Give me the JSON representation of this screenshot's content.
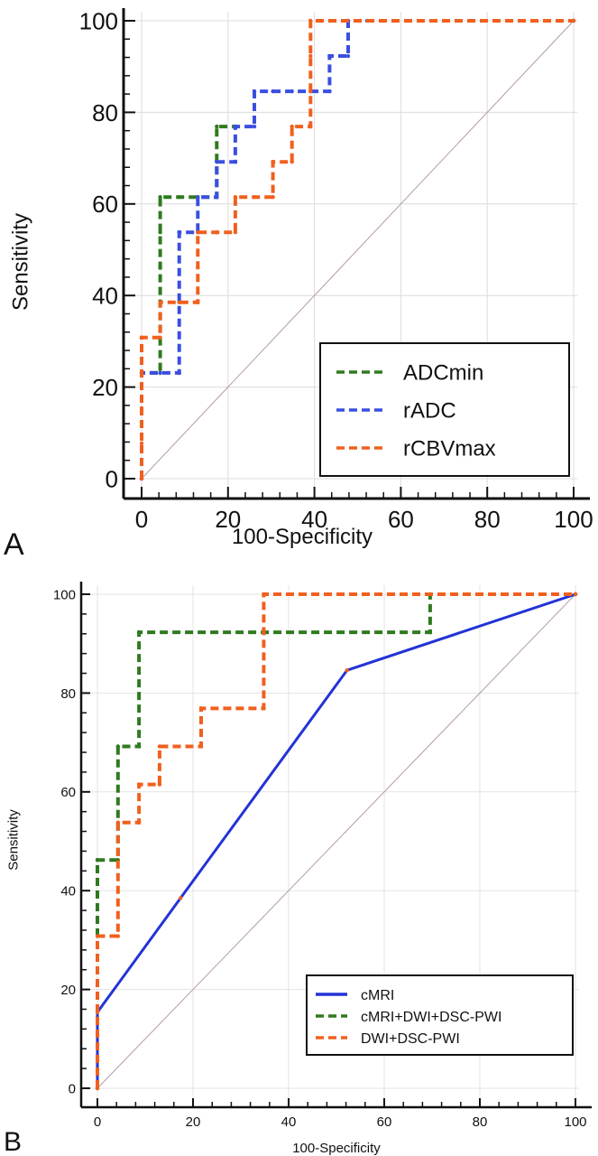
{
  "chart_data": [
    {
      "type": "line",
      "panel_label": "A",
      "title": "",
      "xlabel": "100-Specificity",
      "ylabel": "Sensitivity",
      "xlim": [
        0,
        100
      ],
      "ylim": [
        0,
        100
      ],
      "xticks": [
        0,
        20,
        40,
        60,
        80,
        100
      ],
      "yticks": [
        0,
        20,
        40,
        60,
        80,
        100
      ],
      "grid": true,
      "legend_position": "bottom-right",
      "reference_line": {
        "name": "chance",
        "x": [
          0,
          100
        ],
        "y": [
          0,
          100
        ],
        "color": "#b49aa8"
      },
      "series": [
        {
          "name": "ADCmin",
          "style": "dashed",
          "color": "#2f7a1f",
          "x": [
            0,
            0,
            4.3,
            4.3,
            4.3,
            4.3,
            8.7,
            13,
            17.4,
            17.4,
            21.7,
            21.7
          ],
          "y": [
            0,
            23.1,
            23.1,
            46.2,
            53.8,
            61.5,
            61.5,
            61.5,
            61.5,
            76.9,
            76.9,
            76.9
          ]
        },
        {
          "name": "rADC",
          "style": "dashed",
          "color": "#3a4fe0",
          "x": [
            0,
            0,
            4.3,
            8.7,
            8.7,
            8.7,
            13,
            13,
            17.4,
            17.4,
            21.7,
            21.7,
            26.1,
            26.1,
            30.4,
            34.8,
            39.1,
            43.5,
            43.5,
            47.8,
            47.8,
            52.2,
            100
          ],
          "y": [
            0,
            23.1,
            23.1,
            23.1,
            53.8,
            53.8,
            53.8,
            61.5,
            61.5,
            69.2,
            69.2,
            76.9,
            76.9,
            84.6,
            84.6,
            84.6,
            84.6,
            84.6,
            92.3,
            92.3,
            100,
            100,
            100
          ]
        },
        {
          "name": "rCBVmax",
          "style": "dashed",
          "color": "#f0601e",
          "x": [
            0,
            0,
            0,
            0,
            0,
            4.3,
            4.3,
            8.7,
            13,
            13,
            13,
            17.4,
            21.7,
            21.7,
            26.1,
            30.4,
            30.4,
            34.8,
            34.8,
            39.1,
            39.1,
            39.1,
            39.1,
            100
          ],
          "y": [
            0,
            7.7,
            15.4,
            23.1,
            30.8,
            30.8,
            38.5,
            38.5,
            38.5,
            46.2,
            53.8,
            53.8,
            53.8,
            61.5,
            61.5,
            61.5,
            69.2,
            69.2,
            76.9,
            76.9,
            84.6,
            92.3,
            100,
            100
          ]
        }
      ]
    },
    {
      "type": "line",
      "panel_label": "B",
      "title": "",
      "xlabel": "100-Specificity",
      "ylabel": "Sensitivity",
      "xlim": [
        0,
        100
      ],
      "ylim": [
        0,
        100
      ],
      "xticks": [
        0,
        20,
        40,
        60,
        80,
        100
      ],
      "yticks": [
        0,
        20,
        40,
        60,
        80,
        100
      ],
      "grid": true,
      "legend_position": "bottom-right",
      "reference_line": {
        "name": "chance",
        "x": [
          0,
          100
        ],
        "y": [
          0,
          100
        ],
        "color": "#b49aa8"
      },
      "series": [
        {
          "name": "cMRI",
          "style": "solid",
          "color": "#2233d6",
          "x": [
            0,
            0,
            17.4,
            52.2,
            100
          ],
          "y": [
            0,
            15.4,
            38.5,
            84.6,
            100
          ]
        },
        {
          "name": "cMRI+DWI+DSC-PWI",
          "style": "dashed",
          "color": "#2f7a1f",
          "x": [
            0,
            0,
            4.3,
            4.3,
            8.7,
            8.7,
            69.6,
            69.6,
            100
          ],
          "y": [
            0,
            46.2,
            46.2,
            69.2,
            69.2,
            92.3,
            92.3,
            100,
            100
          ]
        },
        {
          "name": "DWI+DSC-PWI",
          "style": "dashed",
          "color": "#f0601e",
          "x": [
            0,
            0,
            4.3,
            4.3,
            8.7,
            8.7,
            13,
            13,
            21.7,
            21.7,
            34.8,
            34.8,
            100
          ],
          "y": [
            0,
            30.8,
            30.8,
            53.8,
            53.8,
            61.5,
            61.5,
            69.2,
            69.2,
            76.9,
            76.9,
            100,
            100
          ]
        }
      ]
    }
  ]
}
